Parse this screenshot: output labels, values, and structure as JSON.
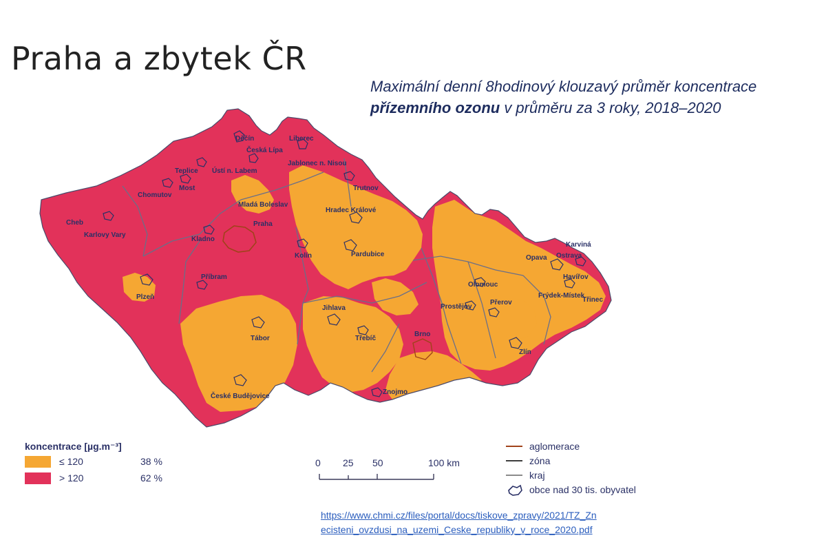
{
  "slide": {
    "title": "Praha a zbytek ČR",
    "subtitle_line1": "Maximální denní 8hodinový klouzavý průměr koncentrace",
    "subtitle_bold": "přízemního ozonu",
    "subtitle_rest": " v průměru za 3 roky, 2018–2020"
  },
  "map": {
    "region": "Česká republika",
    "cities": [
      {
        "name": "Děčín"
      },
      {
        "name": "Česká Lípa"
      },
      {
        "name": "Liberec"
      },
      {
        "name": "Jablonec n. Nisou"
      },
      {
        "name": "Teplice"
      },
      {
        "name": "Ústí n. Labem"
      },
      {
        "name": "Most"
      },
      {
        "name": "Chomutov"
      },
      {
        "name": "Trutnov"
      },
      {
        "name": "Mladá Boleslav"
      },
      {
        "name": "Hradec Králové"
      },
      {
        "name": "Cheb"
      },
      {
        "name": "Karlovy Vary"
      },
      {
        "name": "Praha"
      },
      {
        "name": "Kladno"
      },
      {
        "name": "Kolín"
      },
      {
        "name": "Pardubice"
      },
      {
        "name": "Karviná"
      },
      {
        "name": "Opava"
      },
      {
        "name": "Ostrava"
      },
      {
        "name": "Havířov"
      },
      {
        "name": "Olomouc"
      },
      {
        "name": "Plzeň"
      },
      {
        "name": "Příbram"
      },
      {
        "name": "Frýdek-Místek"
      },
      {
        "name": "Třinec"
      },
      {
        "name": "Prostějov"
      },
      {
        "name": "Přerov"
      },
      {
        "name": "Jihlava"
      },
      {
        "name": "Tábor"
      },
      {
        "name": "Třebíč"
      },
      {
        "name": "Brno"
      },
      {
        "name": "Zlín"
      },
      {
        "name": "České Budějovice"
      },
      {
        "name": "Znojmo"
      }
    ]
  },
  "legend": {
    "title": "koncentrace [µg.m⁻³]",
    "items": [
      {
        "label": "≤ 120",
        "share": "38 %",
        "color": "#f5a733"
      },
      {
        "label": "> 120",
        "share": "62 %",
        "color": "#e2325a"
      }
    ]
  },
  "scale": {
    "ticks": [
      "0",
      "25",
      "50",
      "100 km"
    ]
  },
  "boundaries": [
    {
      "label": "aglomerace",
      "color": "#a0421a"
    },
    {
      "label": "zóna",
      "color": "#3c3c3c"
    },
    {
      "label": "kraj",
      "color": "#8a8a8a"
    },
    {
      "label": "obce nad 30 tis. obyvatel",
      "icon": "municipality-outline-icon"
    }
  ],
  "source": {
    "url": "https://www.chmi.cz/files/portal/docs/tiskove_zpravy/2021/TZ_Znecisteni_ovzdusi_na_uzemi_Ceske_republiky_v_roce_2020.pdf",
    "line1": "https://www.chmi.cz/files/portal/docs/tiskove_zpravy/2021/TZ_Zn",
    "line2": "ecisteni_ovzdusi_na_uzemi_Ceske_republiky_v_roce_2020.pdf"
  },
  "colors": {
    "high": "#e2325a",
    "low": "#f5a733",
    "text": "#2a3066"
  }
}
